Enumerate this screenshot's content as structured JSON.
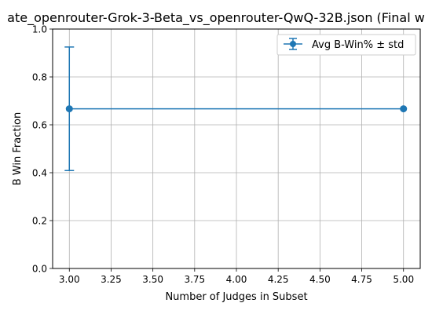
{
  "chart_data": {
    "type": "line",
    "title": "ate_openrouter-Grok-3-Beta_vs_openrouter-QwQ-32B.json (Final w",
    "xlabel": "Number of Judges in Subset",
    "ylabel": "B Win Fraction",
    "xlim": [
      2.9,
      5.1
    ],
    "ylim": [
      0.0,
      1.0
    ],
    "x_ticks": [
      "3.00",
      "3.25",
      "3.50",
      "3.75",
      "4.00",
      "4.25",
      "4.50",
      "4.75",
      "5.00"
    ],
    "y_ticks": [
      "0.0",
      "0.2",
      "0.4",
      "0.6",
      "0.8",
      "1.0"
    ],
    "grid": true,
    "legend_position": "upper right",
    "series": [
      {
        "name": "Avg B-Win% ± std",
        "color": "#1f77b4",
        "marker": "circle",
        "x": [
          3.0,
          5.0
        ],
        "y": [
          0.667,
          0.667
        ],
        "yerr": [
          0.258,
          0.0
        ]
      }
    ]
  }
}
